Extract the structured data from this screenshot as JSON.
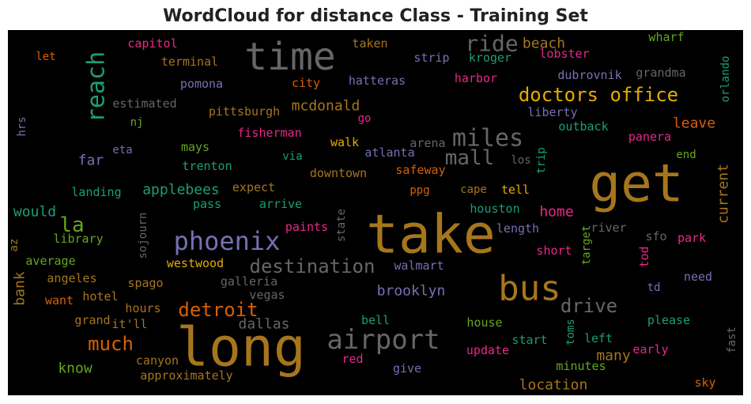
{
  "title": "WordCloud for distance Class - Training Set",
  "words": [
    "time",
    "get",
    "take",
    "long",
    "bus",
    "airport",
    "phoenix",
    "reach",
    "ride",
    "miles",
    "mall",
    "doctors office",
    "destination",
    "detroit",
    "much",
    "drive",
    "la",
    "beach",
    "capitol",
    "terminal",
    "taken",
    "strip",
    "kroger",
    "lobster",
    "wharf",
    "let",
    "orlando",
    "grandma",
    "dubrovnik",
    "harbor",
    "pomona",
    "city",
    "hatteras",
    "estimated",
    "pittsburgh",
    "mcdonald",
    "liberty",
    "nj",
    "go",
    "hrs",
    "fisherman",
    "outback",
    "leave",
    "panera",
    "walk",
    "mays",
    "atlanta",
    "arena",
    "trip",
    "eta",
    "via",
    "end",
    "far",
    "los",
    "current",
    "trenton",
    "downtown",
    "safeway",
    "expect",
    "applebees",
    "landing",
    "ppg",
    "cape",
    "tell",
    "would",
    "pass",
    "arrive",
    "houston",
    "home",
    "sojourn",
    "az",
    "library",
    "paints",
    "state",
    "length",
    "river",
    "target",
    "sfo",
    "park",
    "average",
    "westwood",
    "walmart",
    "short",
    "tod",
    "td",
    "need",
    "bank",
    "angeles",
    "spago",
    "galleria",
    "vegas",
    "brooklyn",
    "want",
    "hotel",
    "hours",
    "dallas",
    "grand",
    "it'll",
    "bell",
    "house",
    "please",
    "fast",
    "toms",
    "start",
    "left",
    "know",
    "canyon",
    "update",
    "early",
    "many",
    "red",
    "give",
    "minutes",
    "approximately",
    "location",
    "sky"
  ]
}
